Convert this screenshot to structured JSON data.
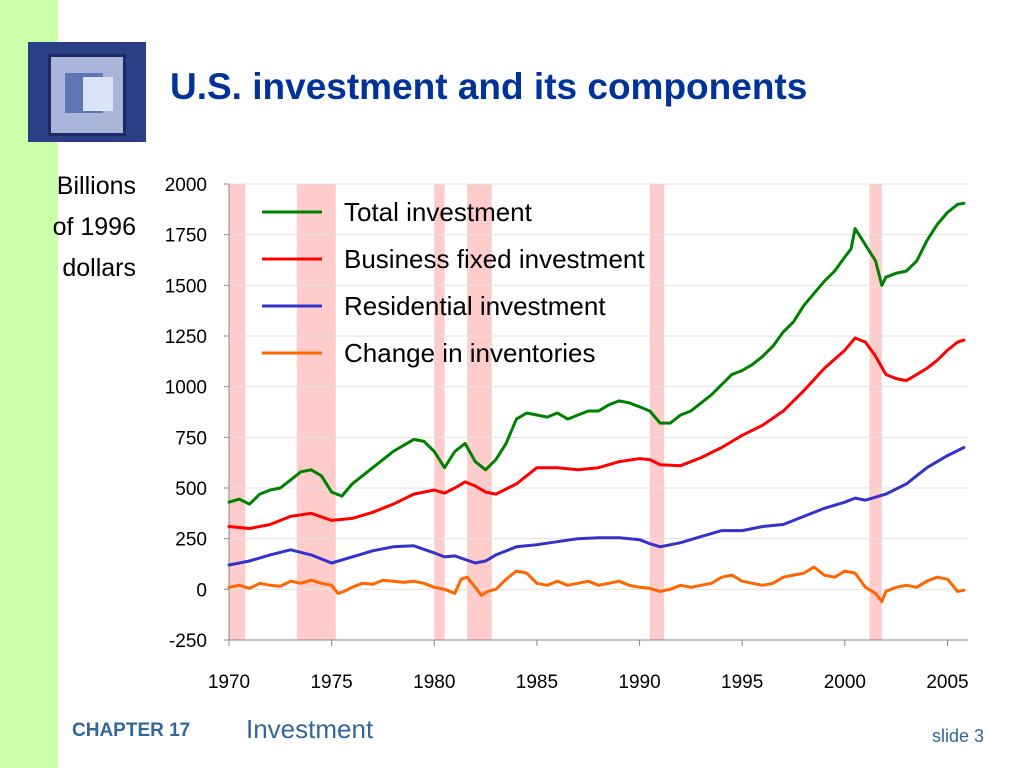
{
  "slide": {
    "title": "U.S. investment and its components",
    "ylabel_lines": [
      "Billions",
      "of 1996",
      "dollars"
    ],
    "footer_chapter": "CHAPTER 17",
    "footer_title": "Investment",
    "slide_number": "slide 3"
  },
  "chart_data": {
    "type": "line",
    "title": "",
    "xlabel": "",
    "ylabel": "Billions of 1996 dollars",
    "xlim": [
      1970,
      2006
    ],
    "ylim": [
      -250,
      2000
    ],
    "x_ticks": [
      "1970",
      "1975",
      "1980",
      "1985",
      "1990",
      "1995",
      "2000",
      "2005"
    ],
    "y_ticks": [
      "2000",
      "1750",
      "1500",
      "1250",
      "1000",
      "750",
      "500",
      "250",
      "0",
      "-250"
    ],
    "recessions": [
      [
        1970.0,
        1970.8
      ],
      [
        1973.3,
        1975.2
      ],
      [
        1980.0,
        1980.5
      ],
      [
        1981.6,
        1982.8
      ],
      [
        1990.5,
        1991.2
      ],
      [
        2001.2,
        2001.8
      ]
    ],
    "legend_position": "top-left",
    "shading_color": "#ffcccc",
    "series": [
      {
        "name": "Total investment",
        "color": "#008000",
        "points": [
          [
            1970,
            430
          ],
          [
            1970.5,
            445
          ],
          [
            1971,
            420
          ],
          [
            1971.5,
            470
          ],
          [
            1972,
            490
          ],
          [
            1972.5,
            500
          ],
          [
            1973,
            540
          ],
          [
            1973.5,
            580
          ],
          [
            1974,
            590
          ],
          [
            1974.5,
            560
          ],
          [
            1975,
            480
          ],
          [
            1975.5,
            460
          ],
          [
            1976,
            520
          ],
          [
            1976.5,
            560
          ],
          [
            1977,
            600
          ],
          [
            1977.5,
            640
          ],
          [
            1978,
            680
          ],
          [
            1978.5,
            710
          ],
          [
            1979,
            740
          ],
          [
            1979.5,
            730
          ],
          [
            1980,
            680
          ],
          [
            1980.5,
            600
          ],
          [
            1981,
            680
          ],
          [
            1981.5,
            720
          ],
          [
            1982,
            630
          ],
          [
            1982.5,
            590
          ],
          [
            1983,
            640
          ],
          [
            1983.5,
            720
          ],
          [
            1984,
            840
          ],
          [
            1984.5,
            870
          ],
          [
            1985,
            860
          ],
          [
            1985.5,
            850
          ],
          [
            1986,
            870
          ],
          [
            1986.5,
            840
          ],
          [
            1987,
            860
          ],
          [
            1987.5,
            880
          ],
          [
            1988,
            880
          ],
          [
            1988.5,
            910
          ],
          [
            1989,
            930
          ],
          [
            1989.5,
            920
          ],
          [
            1990,
            900
          ],
          [
            1990.5,
            880
          ],
          [
            1991,
            820
          ],
          [
            1991.5,
            820
          ],
          [
            1992,
            860
          ],
          [
            1992.5,
            880
          ],
          [
            1993,
            920
          ],
          [
            1993.5,
            960
          ],
          [
            1994,
            1010
          ],
          [
            1994.5,
            1060
          ],
          [
            1995,
            1080
          ],
          [
            1995.5,
            1110
          ],
          [
            1996,
            1150
          ],
          [
            1996.5,
            1200
          ],
          [
            1997,
            1270
          ],
          [
            1997.5,
            1320
          ],
          [
            1998,
            1400
          ],
          [
            1998.5,
            1460
          ],
          [
            1999,
            1520
          ],
          [
            1999.5,
            1570
          ],
          [
            2000,
            1640
          ],
          [
            2000.3,
            1680
          ],
          [
            2000.5,
            1780
          ],
          [
            2001,
            1700
          ],
          [
            2001.5,
            1620
          ],
          [
            2001.8,
            1500
          ],
          [
            2002,
            1540
          ],
          [
            2002.5,
            1560
          ],
          [
            2003,
            1570
          ],
          [
            2003.5,
            1620
          ],
          [
            2004,
            1720
          ],
          [
            2004.5,
            1800
          ],
          [
            2005,
            1860
          ],
          [
            2005.5,
            1900
          ],
          [
            2005.8,
            1905
          ]
        ]
      },
      {
        "name": "Business fixed investment",
        "color": "#ff0000",
        "points": [
          [
            1970,
            310
          ],
          [
            1971,
            300
          ],
          [
            1972,
            320
          ],
          [
            1973,
            360
          ],
          [
            1974,
            375
          ],
          [
            1975,
            340
          ],
          [
            1976,
            350
          ],
          [
            1977,
            380
          ],
          [
            1978,
            420
          ],
          [
            1979,
            470
          ],
          [
            1980,
            490
          ],
          [
            1980.5,
            475
          ],
          [
            1981,
            500
          ],
          [
            1981.5,
            530
          ],
          [
            1982,
            510
          ],
          [
            1982.5,
            480
          ],
          [
            1983,
            470
          ],
          [
            1984,
            520
          ],
          [
            1985,
            600
          ],
          [
            1986,
            600
          ],
          [
            1987,
            590
          ],
          [
            1988,
            600
          ],
          [
            1989,
            630
          ],
          [
            1990,
            645
          ],
          [
            1990.5,
            640
          ],
          [
            1991,
            615
          ],
          [
            1992,
            610
          ],
          [
            1993,
            650
          ],
          [
            1994,
            700
          ],
          [
            1995,
            760
          ],
          [
            1996,
            810
          ],
          [
            1997,
            880
          ],
          [
            1998,
            980
          ],
          [
            1999,
            1090
          ],
          [
            2000,
            1180
          ],
          [
            2000.5,
            1240
          ],
          [
            2001,
            1220
          ],
          [
            2001.5,
            1150
          ],
          [
            2002,
            1060
          ],
          [
            2002.5,
            1040
          ],
          [
            2003,
            1030
          ],
          [
            2003.5,
            1060
          ],
          [
            2004,
            1090
          ],
          [
            2004.5,
            1130
          ],
          [
            2005,
            1180
          ],
          [
            2005.5,
            1220
          ],
          [
            2005.8,
            1230
          ]
        ]
      },
      {
        "name": "Residential investment",
        "color": "#3333cc",
        "points": [
          [
            1970,
            120
          ],
          [
            1971,
            140
          ],
          [
            1972,
            170
          ],
          [
            1973,
            195
          ],
          [
            1974,
            170
          ],
          [
            1975,
            130
          ],
          [
            1976,
            160
          ],
          [
            1977,
            190
          ],
          [
            1978,
            210
          ],
          [
            1979,
            215
          ],
          [
            1980,
            180
          ],
          [
            1980.5,
            160
          ],
          [
            1981,
            165
          ],
          [
            1982,
            130
          ],
          [
            1982.5,
            140
          ],
          [
            1983,
            170
          ],
          [
            1984,
            210
          ],
          [
            1985,
            220
          ],
          [
            1986,
            235
          ],
          [
            1987,
            250
          ],
          [
            1988,
            255
          ],
          [
            1989,
            255
          ],
          [
            1990,
            245
          ],
          [
            1990.5,
            225
          ],
          [
            1991,
            210
          ],
          [
            1992,
            230
          ],
          [
            1993,
            260
          ],
          [
            1994,
            290
          ],
          [
            1995,
            290
          ],
          [
            1996,
            310
          ],
          [
            1997,
            320
          ],
          [
            1998,
            360
          ],
          [
            1999,
            400
          ],
          [
            2000,
            430
          ],
          [
            2000.5,
            450
          ],
          [
            2001,
            440
          ],
          [
            2002,
            470
          ],
          [
            2003,
            520
          ],
          [
            2004,
            600
          ],
          [
            2005,
            660
          ],
          [
            2005.8,
            700
          ]
        ]
      },
      {
        "name": "Change in inventories",
        "color": "#ff6600",
        "points": [
          [
            1970,
            10
          ],
          [
            1970.5,
            20
          ],
          [
            1971,
            5
          ],
          [
            1971.5,
            30
          ],
          [
            1972,
            20
          ],
          [
            1972.5,
            15
          ],
          [
            1973,
            40
          ],
          [
            1973.5,
            30
          ],
          [
            1974,
            45
          ],
          [
            1974.5,
            30
          ],
          [
            1975,
            20
          ],
          [
            1975.3,
            -20
          ],
          [
            1975.6,
            -10
          ],
          [
            1976,
            10
          ],
          [
            1976.5,
            30
          ],
          [
            1977,
            25
          ],
          [
            1977.5,
            45
          ],
          [
            1978,
            40
          ],
          [
            1978.5,
            35
          ],
          [
            1979,
            40
          ],
          [
            1979.5,
            30
          ],
          [
            1980,
            10
          ],
          [
            1980.5,
            0
          ],
          [
            1981,
            -20
          ],
          [
            1981.3,
            50
          ],
          [
            1981.6,
            60
          ],
          [
            1982,
            10
          ],
          [
            1982.3,
            -30
          ],
          [
            1982.6,
            -10
          ],
          [
            1983,
            0
          ],
          [
            1983.5,
            50
          ],
          [
            1984,
            90
          ],
          [
            1984.5,
            80
          ],
          [
            1985,
            30
          ],
          [
            1985.5,
            20
          ],
          [
            1986,
            40
          ],
          [
            1986.5,
            20
          ],
          [
            1987,
            30
          ],
          [
            1987.5,
            40
          ],
          [
            1988,
            20
          ],
          [
            1988.5,
            30
          ],
          [
            1989,
            40
          ],
          [
            1989.5,
            20
          ],
          [
            1990,
            10
          ],
          [
            1990.5,
            5
          ],
          [
            1991,
            -10
          ],
          [
            1991.5,
            0
          ],
          [
            1992,
            20
          ],
          [
            1992.5,
            10
          ],
          [
            1993,
            20
          ],
          [
            1993.5,
            30
          ],
          [
            1994,
            60
          ],
          [
            1994.5,
            70
          ],
          [
            1995,
            40
          ],
          [
            1995.5,
            30
          ],
          [
            1996,
            20
          ],
          [
            1996.5,
            30
          ],
          [
            1997,
            60
          ],
          [
            1997.5,
            70
          ],
          [
            1998,
            80
          ],
          [
            1998.5,
            110
          ],
          [
            1999,
            70
          ],
          [
            1999.5,
            60
          ],
          [
            2000,
            90
          ],
          [
            2000.5,
            80
          ],
          [
            2001,
            10
          ],
          [
            2001.5,
            -20
          ],
          [
            2001.8,
            -60
          ],
          [
            2002,
            -10
          ],
          [
            2002.5,
            10
          ],
          [
            2003,
            20
          ],
          [
            2003.5,
            10
          ],
          [
            2004,
            40
          ],
          [
            2004.5,
            60
          ],
          [
            2005,
            50
          ],
          [
            2005.5,
            -10
          ],
          [
            2005.8,
            -5
          ]
        ]
      }
    ]
  }
}
